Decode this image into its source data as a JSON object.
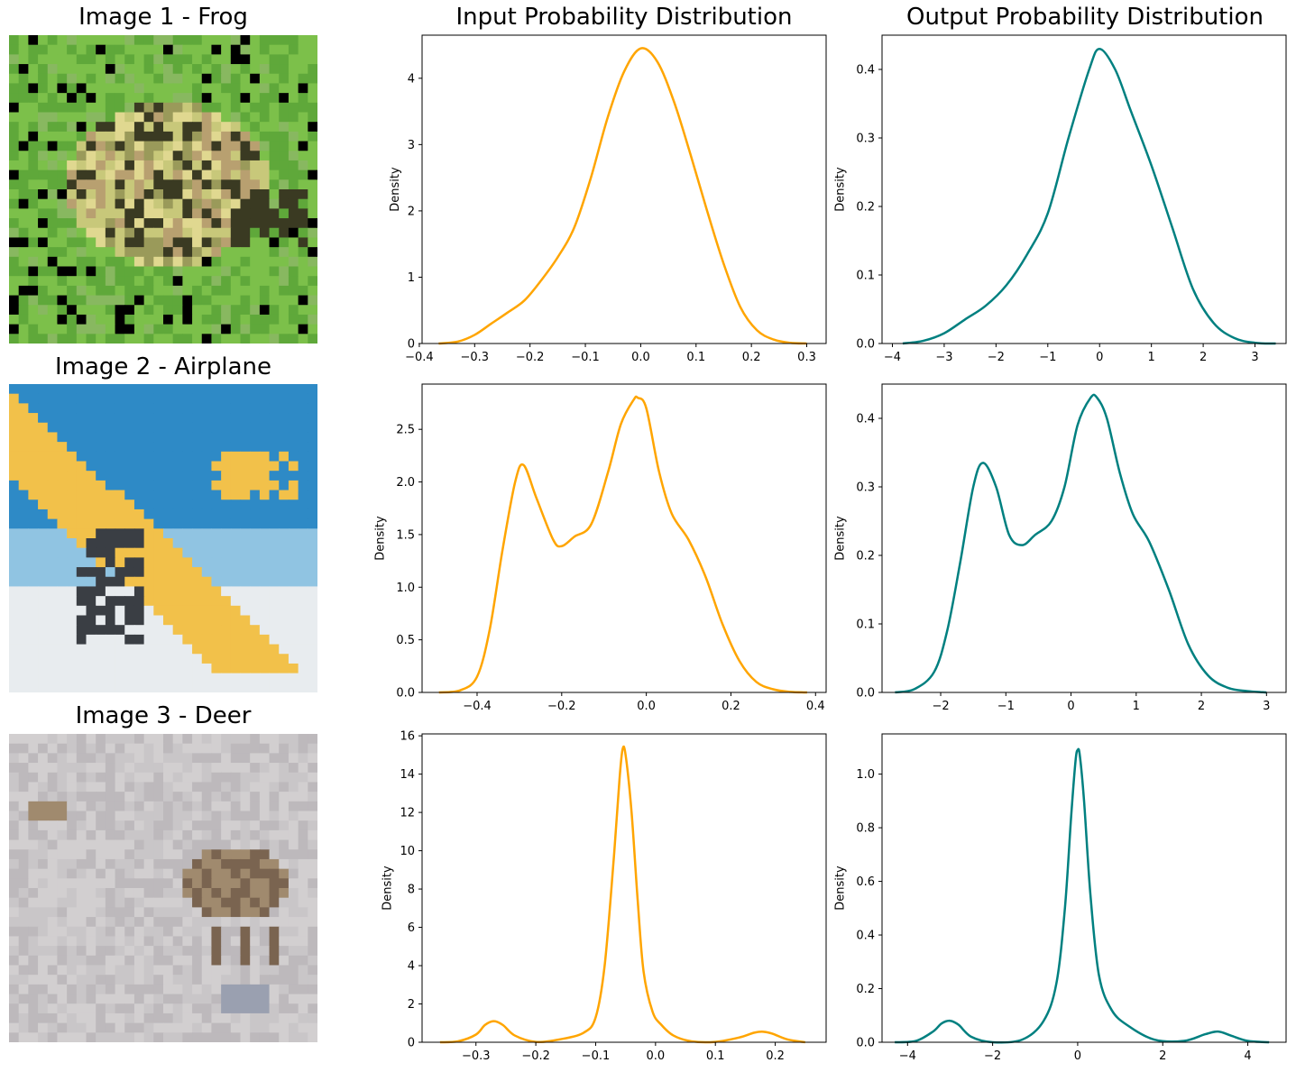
{
  "column_titles": {
    "input": "Input Probability Distribution",
    "output": "Output Probability Distribution"
  },
  "images": [
    {
      "title": "Image 1 - Frog",
      "palette": [
        "#7cc04a",
        "#5fa83a",
        "#c8c87a",
        "#9a9a5a",
        "#e0d890",
        "#3a3a22",
        "#b8a070",
        "#88b860"
      ]
    },
    {
      "title": "Image 2 - Airplane",
      "palette": [
        "#2e8ac6",
        "#f2c14a",
        "#e8ecef",
        "#3a3e44",
        "#90c4e2",
        "#c8a040"
      ]
    },
    {
      "title": "Image 3 - Deer",
      "palette": [
        "#c9c6c8",
        "#bdb9bc",
        "#d2cfd0",
        "#7a6450",
        "#a08a6e",
        "#9aa0b0"
      ]
    }
  ],
  "colors": {
    "input": "#FFA500",
    "output": "#008080"
  },
  "chart_data": [
    {
      "type": "line",
      "title": "Input Probability Distribution",
      "xlabel": "",
      "ylabel": "Density",
      "xlim": [
        -0.395,
        0.335
      ],
      "ylim": [
        0,
        4.65
      ],
      "xticks": [
        -0.4,
        -0.3,
        -0.2,
        -0.1,
        0.0,
        0.1,
        0.2,
        0.3
      ],
      "xtick_labels": [
        "−0.4",
        "−0.3",
        "−0.2",
        "−0.1",
        "0.0",
        "0.1",
        "0.2",
        "0.3"
      ],
      "yticks": [
        0,
        1,
        2,
        3,
        4
      ],
      "ytick_labels": [
        "0",
        "1",
        "2",
        "3",
        "4"
      ],
      "series": [
        {
          "x": [
            -0.365,
            -0.33,
            -0.3,
            -0.27,
            -0.24,
            -0.21,
            -0.18,
            -0.15,
            -0.12,
            -0.09,
            -0.06,
            -0.03,
            0.0,
            0.03,
            0.06,
            0.09,
            0.12,
            0.15,
            0.18,
            0.21,
            0.24,
            0.27,
            0.3
          ],
          "y": [
            0.0,
            0.03,
            0.13,
            0.3,
            0.47,
            0.65,
            0.95,
            1.3,
            1.75,
            2.5,
            3.4,
            4.1,
            4.45,
            4.25,
            3.65,
            2.85,
            2.0,
            1.2,
            0.55,
            0.2,
            0.06,
            0.01,
            0.0
          ]
        }
      ]
    },
    {
      "type": "line",
      "title": "Output Probability Distribution",
      "xlabel": "",
      "ylabel": "Density",
      "xlim": [
        -4.2,
        3.6
      ],
      "ylim": [
        0,
        0.45
      ],
      "xticks": [
        -4,
        -3,
        -2,
        -1,
        0,
        1,
        2,
        3
      ],
      "xtick_labels": [
        "−4",
        "−3",
        "−2",
        "−1",
        "0",
        "1",
        "2",
        "3"
      ],
      "yticks": [
        0.0,
        0.1,
        0.2,
        0.3,
        0.4
      ],
      "ytick_labels": [
        "0.0",
        "0.1",
        "0.2",
        "0.3",
        "0.4"
      ],
      "series": [
        {
          "x": [
            -3.8,
            -3.4,
            -3.0,
            -2.6,
            -2.2,
            -1.8,
            -1.4,
            -1.0,
            -0.6,
            -0.2,
            0.0,
            0.3,
            0.6,
            1.0,
            1.4,
            1.8,
            2.2,
            2.6,
            3.0,
            3.4
          ],
          "y": [
            0.0,
            0.004,
            0.015,
            0.035,
            0.055,
            0.085,
            0.13,
            0.19,
            0.3,
            0.4,
            0.43,
            0.4,
            0.34,
            0.26,
            0.17,
            0.08,
            0.03,
            0.008,
            0.001,
            0.0
          ]
        }
      ]
    },
    {
      "type": "line",
      "title": "",
      "xlabel": "",
      "ylabel": "Density",
      "xlim": [
        -0.53,
        0.425
      ],
      "ylim": [
        0,
        2.93
      ],
      "xticks": [
        -0.4,
        -0.2,
        0.0,
        0.2,
        0.4
      ],
      "xtick_labels": [
        "−0.4",
        "−0.2",
        "0.0",
        "0.2",
        "0.4"
      ],
      "yticks": [
        0.0,
        0.5,
        1.0,
        1.5,
        2.0,
        2.5
      ],
      "ytick_labels": [
        "0.0",
        "0.5",
        "1.0",
        "1.5",
        "2.0",
        "2.5"
      ],
      "series": [
        {
          "x": [
            -0.49,
            -0.44,
            -0.4,
            -0.37,
            -0.34,
            -0.31,
            -0.29,
            -0.26,
            -0.22,
            -0.2,
            -0.17,
            -0.13,
            -0.09,
            -0.06,
            -0.03,
            -0.02,
            0.0,
            0.03,
            0.06,
            0.1,
            0.14,
            0.18,
            0.22,
            0.26,
            0.3,
            0.34,
            0.38
          ],
          "y": [
            0.0,
            0.02,
            0.15,
            0.6,
            1.35,
            2.0,
            2.16,
            1.85,
            1.45,
            1.39,
            1.48,
            1.6,
            2.1,
            2.55,
            2.78,
            2.8,
            2.7,
            2.1,
            1.7,
            1.45,
            1.1,
            0.65,
            0.3,
            0.1,
            0.03,
            0.005,
            0.0
          ]
        }
      ]
    },
    {
      "type": "line",
      "title": "",
      "xlabel": "",
      "ylabel": "Density",
      "xlim": [
        -2.9,
        3.3
      ],
      "ylim": [
        0,
        0.45
      ],
      "xticks": [
        -2,
        -1,
        0,
        1,
        2,
        3
      ],
      "xtick_labels": [
        "−2",
        "−1",
        "0",
        "1",
        "2",
        "3"
      ],
      "yticks": [
        0.0,
        0.1,
        0.2,
        0.3,
        0.4
      ],
      "ytick_labels": [
        "0.0",
        "0.1",
        "0.2",
        "0.3",
        "0.4"
      ],
      "series": [
        {
          "x": [
            -2.7,
            -2.4,
            -2.1,
            -1.9,
            -1.7,
            -1.5,
            -1.35,
            -1.15,
            -0.95,
            -0.75,
            -0.55,
            -0.3,
            -0.1,
            0.1,
            0.3,
            0.4,
            0.55,
            0.75,
            0.95,
            1.2,
            1.5,
            1.8,
            2.1,
            2.4,
            2.7,
            3.0
          ],
          "y": [
            0.0,
            0.005,
            0.03,
            0.09,
            0.19,
            0.3,
            0.335,
            0.3,
            0.23,
            0.215,
            0.23,
            0.25,
            0.3,
            0.39,
            0.43,
            0.43,
            0.4,
            0.32,
            0.26,
            0.22,
            0.15,
            0.07,
            0.025,
            0.007,
            0.002,
            0.0
          ]
        }
      ]
    },
    {
      "type": "line",
      "title": "",
      "xlabel": "",
      "ylabel": "Density",
      "xlim": [
        -0.39,
        0.285
      ],
      "ylim": [
        0,
        16.1
      ],
      "xticks": [
        -0.3,
        -0.2,
        -0.1,
        0.0,
        0.1,
        0.2
      ],
      "xtick_labels": [
        "−0.3",
        "−0.2",
        "−0.1",
        "0.0",
        "0.1",
        "0.2"
      ],
      "yticks": [
        0,
        2,
        4,
        6,
        8,
        10,
        12,
        14,
        16
      ],
      "ytick_labels": [
        "0",
        "2",
        "4",
        "6",
        "8",
        "10",
        "12",
        "14",
        "16"
      ],
      "series": [
        {
          "x": [
            -0.36,
            -0.33,
            -0.3,
            -0.285,
            -0.27,
            -0.255,
            -0.235,
            -0.2,
            -0.16,
            -0.12,
            -0.1,
            -0.085,
            -0.07,
            -0.06,
            -0.055,
            -0.05,
            -0.04,
            -0.03,
            -0.02,
            -0.005,
            0.01,
            0.03,
            0.06,
            0.1,
            0.14,
            0.165,
            0.18,
            0.195,
            0.22,
            0.25
          ],
          "y": [
            0.0,
            0.05,
            0.4,
            0.9,
            1.1,
            0.9,
            0.35,
            0.02,
            0.15,
            0.5,
            1.3,
            4.0,
            9.5,
            13.8,
            15.3,
            15.0,
            12.0,
            7.5,
            3.7,
            1.6,
            0.9,
            0.35,
            0.05,
            0.02,
            0.25,
            0.5,
            0.55,
            0.45,
            0.15,
            0.0
          ]
        }
      ]
    },
    {
      "type": "line",
      "title": "",
      "xlabel": "",
      "ylabel": "Density",
      "xlim": [
        -4.6,
        4.9
      ],
      "ylim": [
        0,
        1.15
      ],
      "xticks": [
        -4,
        -2,
        0,
        2,
        4
      ],
      "xtick_labels": [
        "−4",
        "−2",
        "0",
        "2",
        "4"
      ],
      "yticks": [
        0.0,
        0.2,
        0.4,
        0.6,
        0.8,
        1.0
      ],
      "ytick_labels": [
        "0.0",
        "0.2",
        "0.4",
        "0.6",
        "0.8",
        "1.0"
      ],
      "series": [
        {
          "x": [
            -4.3,
            -3.8,
            -3.4,
            -3.2,
            -3.0,
            -2.8,
            -2.5,
            -2.0,
            -1.3,
            -0.8,
            -0.5,
            -0.3,
            -0.15,
            -0.05,
            0.0,
            0.05,
            0.15,
            0.3,
            0.5,
            0.8,
            1.2,
            1.8,
            2.5,
            3.0,
            3.3,
            3.6,
            4.0,
            4.5
          ],
          "y": [
            0.0,
            0.005,
            0.04,
            0.07,
            0.08,
            0.065,
            0.02,
            0.0,
            0.01,
            0.08,
            0.22,
            0.5,
            0.85,
            1.05,
            1.09,
            1.07,
            0.9,
            0.55,
            0.25,
            0.12,
            0.06,
            0.01,
            0.005,
            0.03,
            0.04,
            0.025,
            0.005,
            0.0
          ]
        }
      ]
    }
  ]
}
